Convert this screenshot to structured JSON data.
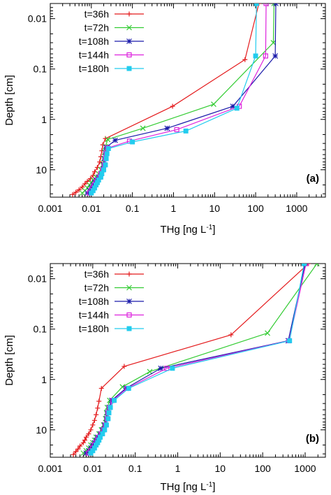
{
  "chart_data": [
    {
      "type": "line",
      "panel_label": "(a)",
      "xlabel_main": "THg [ng L",
      "xlabel_sup": "-1",
      "xlabel_end": "]",
      "ylabel": "Depth [cm]",
      "x_scale": "log",
      "y_scale": "log",
      "y_inverted": true,
      "xlim": [
        0.001,
        5000
      ],
      "ylim": [
        0.005,
        35
      ],
      "x_ticks": [
        {
          "value": 0.001,
          "label": "0.001"
        },
        {
          "value": 0.01,
          "label": "0.01"
        },
        {
          "value": 0.1,
          "label": "0.1"
        },
        {
          "value": 1,
          "label": "1"
        },
        {
          "value": 10,
          "label": "10"
        },
        {
          "value": 100,
          "label": "100"
        },
        {
          "value": 1000,
          "label": "1000"
        }
      ],
      "y_ticks": [
        {
          "value": 0.01,
          "label": "0.01"
        },
        {
          "value": 0.1,
          "label": "0.1"
        },
        {
          "value": 1,
          "label": "1"
        },
        {
          "value": 10,
          "label": "10"
        }
      ],
      "grid": false,
      "legend_position": "top-left",
      "series": [
        {
          "name": "t=36h",
          "color": "#e41a1c",
          "marker": "plus",
          "points": [
            [
              120,
              0.005
            ],
            [
              55,
              0.065
            ],
            [
              0.95,
              0.55
            ],
            [
              0.022,
              2.4
            ],
            [
              0.019,
              3.2
            ],
            [
              0.018,
              4.2
            ],
            [
              0.017,
              5.5
            ],
            [
              0.016,
              7
            ],
            [
              0.014,
              9
            ],
            [
              0.012,
              11
            ],
            [
              0.011,
              13
            ],
            [
              0.0095,
              15
            ],
            [
              0.008,
              17
            ],
            [
              0.007,
              19
            ],
            [
              0.006,
              22
            ],
            [
              0.005,
              25
            ],
            [
              0.0042,
              28
            ],
            [
              0.0035,
              31
            ]
          ]
        },
        {
          "name": "t=72h",
          "color": "#33cc33",
          "marker": "cross",
          "points": [
            [
              280,
              0.005
            ],
            [
              270,
              0.03
            ],
            [
              9.5,
              0.5
            ],
            [
              0.18,
              1.5
            ],
            [
              0.025,
              2.5
            ],
            [
              0.022,
              3.5
            ],
            [
              0.021,
              4.5
            ],
            [
              0.02,
              6
            ],
            [
              0.019,
              8
            ],
            [
              0.017,
              10
            ],
            [
              0.015,
              12
            ],
            [
              0.013,
              14
            ],
            [
              0.011,
              16
            ],
            [
              0.01,
              18
            ],
            [
              0.009,
              20
            ],
            [
              0.008,
              23
            ],
            [
              0.007,
              26
            ],
            [
              0.006,
              29
            ]
          ]
        },
        {
          "name": "t=108h",
          "color": "#1a1aaa",
          "marker": "asterisk",
          "points": [
            [
              310,
              0.005
            ],
            [
              300,
              0.055
            ],
            [
              28,
              0.55
            ],
            [
              0.7,
              1.5
            ],
            [
              0.038,
              2.6
            ],
            [
              0.023,
              3.6
            ],
            [
              0.022,
              4.6
            ],
            [
              0.021,
              6
            ],
            [
              0.02,
              8
            ],
            [
              0.019,
              10
            ],
            [
              0.017,
              12
            ],
            [
              0.015,
              14
            ],
            [
              0.013,
              16
            ],
            [
              0.012,
              18
            ],
            [
              0.011,
              20
            ],
            [
              0.01,
              23
            ],
            [
              0.009,
              26
            ],
            [
              0.008,
              29
            ]
          ]
        },
        {
          "name": "t=144h",
          "color": "#dd22dd",
          "marker": "square",
          "points": [
            [
              180,
              0.005
            ],
            [
              175,
              0.055
            ],
            [
              40,
              0.55
            ],
            [
              1.2,
              1.6
            ],
            [
              0.085,
              2.7
            ],
            [
              0.025,
              3.7
            ],
            [
              0.023,
              4.7
            ],
            [
              0.022,
              6
            ],
            [
              0.021,
              8
            ],
            [
              0.019,
              10
            ],
            [
              0.017,
              12
            ],
            [
              0.016,
              14
            ],
            [
              0.014,
              16
            ],
            [
              0.013,
              18
            ],
            [
              0.012,
              20
            ],
            [
              0.011,
              23
            ],
            [
              0.01,
              26
            ],
            [
              0.009,
              29
            ]
          ]
        },
        {
          "name": "t=180h",
          "color": "#22ccee",
          "marker": "filled-square",
          "points": [
            [
              105,
              0.005
            ],
            [
              100,
              0.055
            ],
            [
              35,
              0.6
            ],
            [
              2,
              1.7
            ],
            [
              0.1,
              2.8
            ],
            [
              0.026,
              3.8
            ],
            [
              0.024,
              4.8
            ],
            [
              0.023,
              6
            ],
            [
              0.022,
              8
            ],
            [
              0.02,
              10
            ],
            [
              0.018,
              12
            ],
            [
              0.017,
              14
            ],
            [
              0.015,
              16
            ],
            [
              0.014,
              18
            ],
            [
              0.013,
              20
            ],
            [
              0.012,
              23
            ],
            [
              0.011,
              26
            ],
            [
              0.01,
              29
            ]
          ]
        }
      ]
    },
    {
      "type": "line",
      "panel_label": "(b)",
      "xlabel_main": "THg [ng L",
      "xlabel_sup": "-1",
      "xlabel_end": "]",
      "ylabel": "Depth [cm]",
      "x_scale": "log",
      "y_scale": "log",
      "y_inverted": true,
      "xlim": [
        0.001,
        3000
      ],
      "ylim": [
        0.005,
        35
      ],
      "x_ticks": [
        {
          "value": 0.001,
          "label": "0.001"
        },
        {
          "value": 0.01,
          "label": "0.01"
        },
        {
          "value": 0.1,
          "label": "0.1"
        },
        {
          "value": 1,
          "label": "1"
        },
        {
          "value": 10,
          "label": "10"
        },
        {
          "value": 100,
          "label": "100"
        },
        {
          "value": 1000,
          "label": "1000"
        }
      ],
      "y_ticks": [
        {
          "value": 0.01,
          "label": "0.01"
        },
        {
          "value": 0.1,
          "label": "0.1"
        },
        {
          "value": 1,
          "label": "1"
        },
        {
          "value": 10,
          "label": "10"
        }
      ],
      "grid": false,
      "legend_position": "top-left",
      "series": [
        {
          "name": "t=36h",
          "color": "#e41a1c",
          "marker": "plus",
          "points": [
            [
              1200,
              0.005
            ],
            [
              18,
              0.13
            ],
            [
              0.055,
              0.55
            ],
            [
              0.016,
              1.5
            ],
            [
              0.014,
              2.7
            ],
            [
              0.013,
              3.7
            ],
            [
              0.012,
              5
            ],
            [
              0.011,
              6.5
            ],
            [
              0.01,
              8
            ],
            [
              0.009,
              10
            ],
            [
              0.008,
              12
            ],
            [
              0.007,
              14
            ],
            [
              0.0065,
              16
            ],
            [
              0.006,
              18
            ],
            [
              0.005,
              21
            ],
            [
              0.0045,
              24
            ],
            [
              0.004,
              27
            ],
            [
              0.0035,
              31
            ]
          ]
        },
        {
          "name": "t=72h",
          "color": "#33cc33",
          "marker": "cross",
          "points": [
            [
              1900,
              0.005
            ],
            [
              130,
              0.12
            ],
            [
              0.22,
              0.7
            ],
            [
              0.05,
              1.4
            ],
            [
              0.025,
              2.6
            ],
            [
              0.022,
              3.6
            ],
            [
              0.021,
              4.6
            ],
            [
              0.02,
              6
            ],
            [
              0.018,
              8
            ],
            [
              0.016,
              10
            ],
            [
              0.014,
              12
            ],
            [
              0.012,
              14
            ],
            [
              0.011,
              16
            ],
            [
              0.01,
              18
            ],
            [
              0.009,
              20
            ],
            [
              0.008,
              23
            ],
            [
              0.007,
              26
            ],
            [
              0.006,
              29
            ]
          ]
        },
        {
          "name": "t=108h",
          "color": "#1a1aaa",
          "marker": "asterisk",
          "points": [
            [
              1000,
              0.005
            ],
            [
              400,
              0.17
            ],
            [
              0.4,
              0.6
            ],
            [
              0.06,
              1.5
            ],
            [
              0.028,
              2.6
            ],
            [
              0.024,
              3.6
            ],
            [
              0.022,
              4.6
            ],
            [
              0.021,
              6
            ],
            [
              0.019,
              8
            ],
            [
              0.017,
              10
            ],
            [
              0.015,
              12
            ],
            [
              0.013,
              14
            ],
            [
              0.012,
              16
            ],
            [
              0.011,
              18
            ],
            [
              0.01,
              20
            ],
            [
              0.009,
              23
            ],
            [
              0.008,
              26
            ],
            [
              0.007,
              29
            ]
          ]
        },
        {
          "name": "t=144h",
          "color": "#dd22dd",
          "marker": "square",
          "points": [
            [
              1050,
              0.005
            ],
            [
              420,
              0.17
            ],
            [
              0.55,
              0.6
            ],
            [
              0.065,
              1.5
            ],
            [
              0.03,
              2.6
            ],
            [
              0.025,
              3.6
            ],
            [
              0.023,
              4.6
            ],
            [
              0.022,
              6
            ],
            [
              0.02,
              8
            ],
            [
              0.018,
              10
            ],
            [
              0.016,
              12
            ],
            [
              0.014,
              14
            ],
            [
              0.013,
              16
            ],
            [
              0.012,
              18
            ],
            [
              0.011,
              20
            ],
            [
              0.01,
              23
            ],
            [
              0.009,
              26
            ],
            [
              0.008,
              29
            ]
          ]
        },
        {
          "name": "t=180h",
          "color": "#22ccee",
          "marker": "filled-square",
          "points": [
            [
              950,
              0.005
            ],
            [
              430,
              0.17
            ],
            [
              0.75,
              0.6
            ],
            [
              0.07,
              1.5
            ],
            [
              0.032,
              2.6
            ],
            [
              0.026,
              3.6
            ],
            [
              0.024,
              4.6
            ],
            [
              0.023,
              6
            ],
            [
              0.021,
              8
            ],
            [
              0.019,
              10
            ],
            [
              0.017,
              12
            ],
            [
              0.015,
              14
            ],
            [
              0.014,
              16
            ],
            [
              0.013,
              18
            ],
            [
              0.012,
              20
            ],
            [
              0.011,
              23
            ],
            [
              0.01,
              26
            ],
            [
              0.009,
              29
            ]
          ]
        }
      ]
    }
  ]
}
